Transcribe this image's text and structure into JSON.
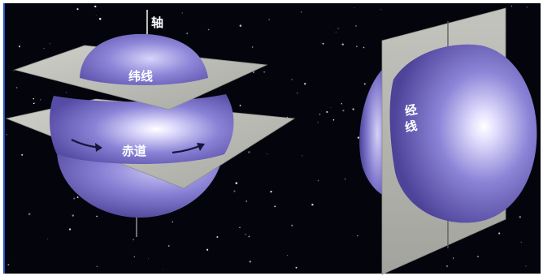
{
  "labels": {
    "axis": "轴",
    "latitude": "纬线",
    "equator": "赤道",
    "longitude_top": "经",
    "longitude_bottom": "线"
  },
  "colors": {
    "space": "#04050c",
    "globe": "#7f77cf",
    "globe_highlight": "#f4f2ff",
    "globe_shadow": "#3c3486",
    "plane": "#b9b9b3",
    "plane_edge": "#8e8e88",
    "arrow": "#16163a",
    "border": "#2a55c8"
  },
  "icons": {
    "equator_arrows": "curved-arrow-right-icon"
  }
}
